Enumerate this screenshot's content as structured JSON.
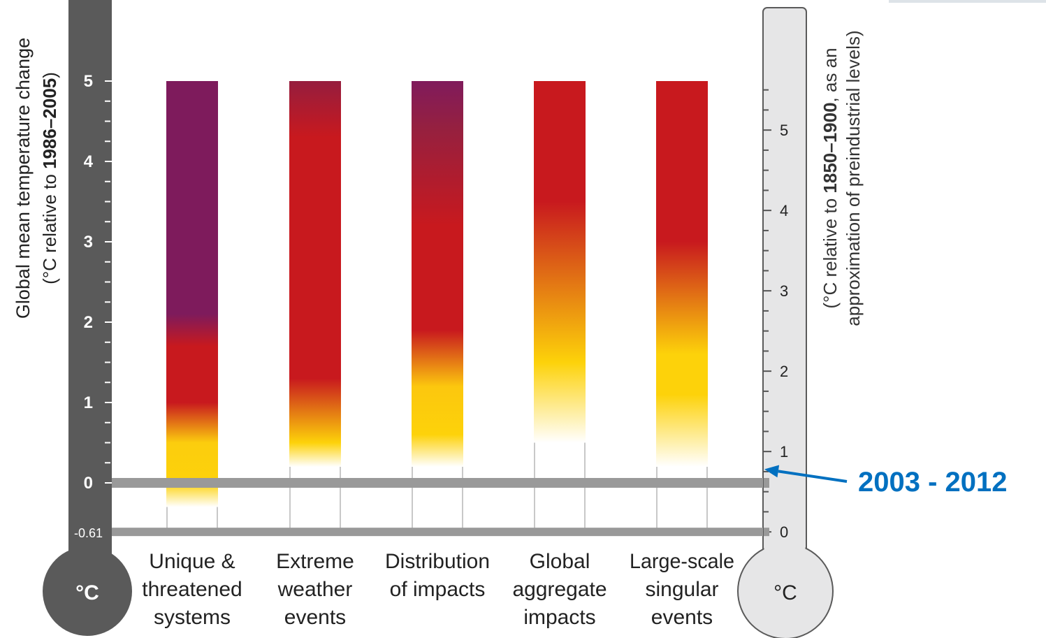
{
  "chart_data": {
    "type": "bar",
    "left_axis": {
      "title": "Global mean temperature change",
      "subtitle_prefix": "(°C relative to ",
      "subtitle_bold": "1986–2005",
      "subtitle_suffix": ")",
      "ticks": [
        "5",
        "4",
        "3",
        "2",
        "1",
        "0",
        "-0.61"
      ],
      "tick_values": [
        5,
        4,
        3,
        2,
        1,
        0,
        -0.61
      ],
      "unit": "°C",
      "ylim": [
        -0.61,
        5
      ]
    },
    "right_axis": {
      "line1_prefix": "(°C relative to ",
      "line1_bold": "1850–1900",
      "line1_suffix": ", as an",
      "line2": "approximation of preindustrial levels)",
      "ticks": [
        "5",
        "4",
        "3",
        "2",
        "1",
        "0"
      ],
      "tick_values": [
        5,
        4,
        3,
        2,
        1,
        0
      ],
      "unit": "°C",
      "offset": 0.61
    },
    "categories": [
      [
        "Unique &",
        "threatened",
        "systems"
      ],
      [
        "Extreme",
        "weather",
        "events"
      ],
      [
        "Distribution",
        "of impacts"
      ],
      [
        "Global",
        "aggregate",
        "impacts"
      ],
      [
        "Large-scale",
        "singular",
        "events"
      ]
    ],
    "series": [
      {
        "fill_start": -0.3,
        "top": 5,
        "stops": [
          [
            -0.3,
            "#ffffff"
          ],
          [
            0.0,
            "#fdd20a"
          ],
          [
            0.5,
            "#fccd0e"
          ],
          [
            1.0,
            "#c8191e"
          ],
          [
            1.7,
            "#c8191e"
          ],
          [
            2.1,
            "#7e1b5c"
          ],
          [
            5.0,
            "#7e1b5c"
          ]
        ]
      },
      {
        "fill_start": 0.2,
        "top": 5,
        "stops": [
          [
            0.2,
            "#ffffff"
          ],
          [
            0.5,
            "#fdd20a"
          ],
          [
            1.3,
            "#c8191e"
          ],
          [
            4.3,
            "#c8191e"
          ],
          [
            5.0,
            "#961d3e"
          ]
        ]
      },
      {
        "fill_start": 0.2,
        "top": 5,
        "stops": [
          [
            0.2,
            "#ffffff"
          ],
          [
            0.6,
            "#fdd20a"
          ],
          [
            1.2,
            "#fcc70e"
          ],
          [
            1.9,
            "#c8191e"
          ],
          [
            3.2,
            "#c8191e"
          ],
          [
            4.4,
            "#96203f"
          ],
          [
            5.0,
            "#801b5c"
          ]
        ]
      },
      {
        "fill_start": 0.5,
        "top": 5,
        "stops": [
          [
            0.5,
            "#ffffff"
          ],
          [
            1.5,
            "#fdd20a"
          ],
          [
            3.5,
            "#c8191e"
          ],
          [
            5.0,
            "#c8191e"
          ]
        ]
      },
      {
        "fill_start": 0.2,
        "top": 5,
        "stops": [
          [
            0.2,
            "#ffffff"
          ],
          [
            1.1,
            "#fdd20a"
          ],
          [
            1.6,
            "#fdd20a"
          ],
          [
            3.0,
            "#c8191e"
          ],
          [
            5.0,
            "#c8191e"
          ]
        ]
      }
    ],
    "reference_lines": [
      0,
      -0.61
    ],
    "annotation": {
      "text": "2003 - 2012",
      "value": 0.78,
      "color": "#0070c0"
    },
    "colors": {
      "left_thermometer": "#5a5a5a",
      "right_thermometer": "#e6e6e7",
      "reference_band": "#999999",
      "bar_outline": "#c8c8c8"
    }
  }
}
